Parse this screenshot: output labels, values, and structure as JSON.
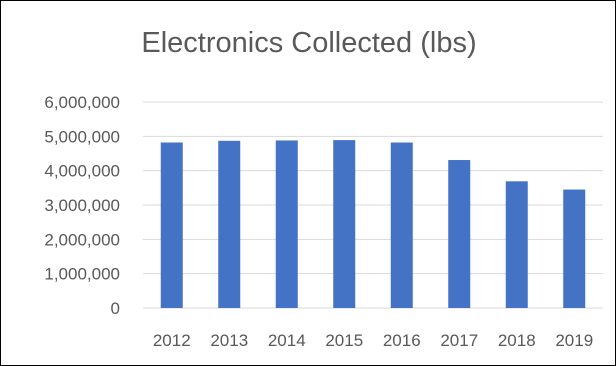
{
  "chart_data": {
    "type": "bar",
    "title": "Electronics Collected (lbs)",
    "categories": [
      "2012",
      "2013",
      "2014",
      "2015",
      "2016",
      "2017",
      "2018",
      "2019"
    ],
    "values": [
      4820000,
      4870000,
      4880000,
      4890000,
      4820000,
      4310000,
      3690000,
      3450000
    ],
    "ylim": [
      0,
      6000000
    ],
    "yticks": [
      "0",
      "1,000,000",
      "2,000,000",
      "3,000,000",
      "4,000,000",
      "5,000,000",
      "6,000,000"
    ],
    "grid": true,
    "legend": "none",
    "bar_color": "#4472C4",
    "grid_color": "#D9D9D9"
  }
}
